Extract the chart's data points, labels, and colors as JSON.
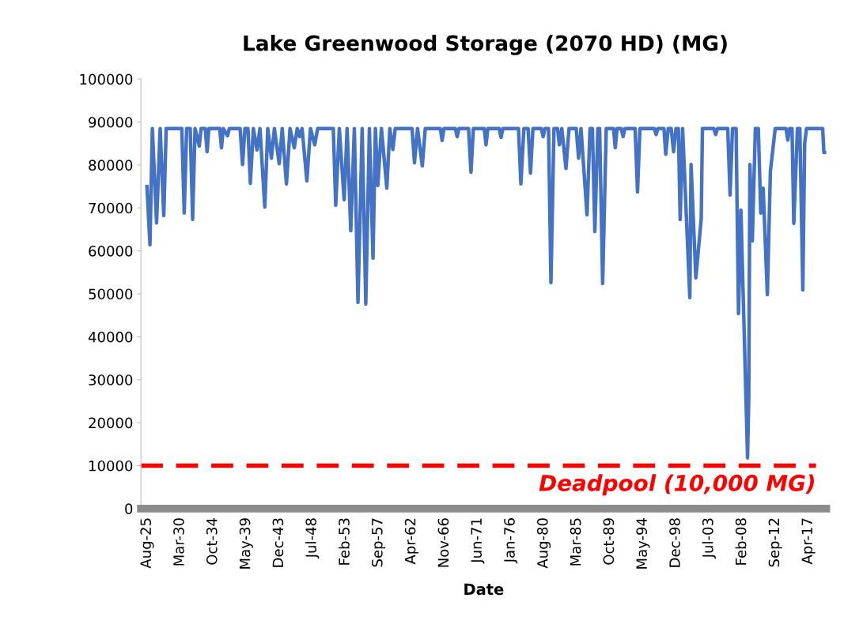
{
  "chart_data": {
    "type": "line",
    "title": "Lake Greenwood Storage (2070 HD) (MG)",
    "xlabel": "Date",
    "x": [
      "1925-08",
      "1926-01",
      "1926-05",
      "1926-12",
      "1927-06",
      "1927-12",
      "1928-04",
      "1930-06",
      "1930-10",
      "1931-02",
      "1931-08",
      "1931-12",
      "1932-04",
      "1932-11",
      "1933-02",
      "1933-09",
      "1933-12",
      "1934-03",
      "1935-09",
      "1935-12",
      "1936-03",
      "1936-10",
      "1937-01",
      "1938-07",
      "1938-11",
      "1939-03",
      "1939-08",
      "1939-12",
      "1940-05",
      "1940-11",
      "1941-04",
      "1941-12",
      "1942-05",
      "1942-11",
      "1943-04",
      "1943-12",
      "1944-05",
      "1944-12",
      "1945-06",
      "1946-01",
      "1946-06",
      "1946-10",
      "1947-02",
      "1947-10",
      "1948-04",
      "1948-11",
      "1949-04",
      "1951-06",
      "1951-10",
      "1952-04",
      "1952-12",
      "1953-05",
      "1953-11",
      "1954-05",
      "1954-11",
      "1955-06",
      "1955-12",
      "1956-06",
      "1956-12",
      "1957-04",
      "1957-08",
      "1958-02",
      "1958-11",
      "1959-04",
      "1959-09",
      "1960-01",
      "1962-05",
      "1962-09",
      "1963-02",
      "1963-10",
      "1964-03",
      "1966-04",
      "1966-07",
      "1966-10",
      "1968-05",
      "1968-08",
      "1968-11",
      "1970-03",
      "1970-07",
      "1970-11",
      "1972-05",
      "1972-08",
      "1972-11",
      "1974-06",
      "1974-09",
      "1974-12",
      "1977-02",
      "1977-06",
      "1977-11",
      "1978-06",
      "1978-10",
      "1979-02",
      "1980-04",
      "1980-07",
      "1980-10",
      "1981-04",
      "1981-08",
      "1982-01",
      "1982-07",
      "1982-10",
      "1983-02",
      "1983-09",
      "1984-02",
      "1985-02",
      "1985-06",
      "1985-10",
      "1986-08",
      "1987-01",
      "1987-05",
      "1987-09",
      "1988-02",
      "1988-05",
      "1988-10",
      "1989-04",
      "1990-04",
      "1990-07",
      "1990-10",
      "1991-05",
      "1991-08",
      "1991-11",
      "1993-04",
      "1993-08",
      "1993-12",
      "1995-12",
      "1996-03",
      "1996-06",
      "1997-04",
      "1997-07",
      "1997-11",
      "1998-04",
      "1998-08",
      "1998-12",
      "1999-04",
      "1999-07",
      "1999-11",
      "2000-11",
      "2001-01",
      "2001-09",
      "2002-06",
      "2002-08",
      "2004-03",
      "2004-06",
      "2004-09",
      "2006-02",
      "2006-06",
      "2006-10",
      "2007-04",
      "2007-08",
      "2007-12",
      "2008-11",
      "2009-01",
      "2009-03",
      "2009-07",
      "2009-12",
      "2010-05",
      "2010-09",
      "2011-01",
      "2011-08",
      "2012-01",
      "2012-09",
      "2014-03",
      "2014-06",
      "2014-09",
      "2015-01",
      "2015-04",
      "2015-10",
      "2016-02",
      "2016-07",
      "2016-10",
      "2017-01",
      "2019-04",
      "2019-06",
      "2019-10"
    ],
    "series": [
      {
        "color": "#4472c4",
        "values": [
          75000,
          61400,
          88500,
          66500,
          88500,
          68200,
          88500,
          88500,
          68800,
          88500,
          88500,
          67300,
          88500,
          84400,
          88500,
          88500,
          83100,
          88500,
          88500,
          84000,
          88500,
          86800,
          88500,
          88500,
          80100,
          88500,
          88500,
          75700,
          88500,
          83500,
          88500,
          70200,
          88500,
          81600,
          88500,
          80300,
          88500,
          75600,
          88500,
          84000,
          88500,
          86600,
          88500,
          76300,
          88500,
          84700,
          88500,
          88500,
          70600,
          88500,
          71900,
          88500,
          64700,
          88500,
          48000,
          88500,
          47600,
          88500,
          58300,
          88500,
          75200,
          88500,
          74600,
          88500,
          83600,
          88500,
          88500,
          80500,
          88500,
          79800,
          88500,
          88500,
          85700,
          88500,
          88500,
          86600,
          88500,
          88500,
          78300,
          88500,
          88500,
          84700,
          88500,
          88500,
          86400,
          88500,
          88500,
          75600,
          88500,
          88500,
          78100,
          88500,
          88500,
          86600,
          88500,
          88500,
          52600,
          88500,
          88500,
          84700,
          88500,
          79200,
          88500,
          88500,
          81600,
          88500,
          68400,
          88500,
          88500,
          64500,
          88500,
          88500,
          52400,
          88500,
          88500,
          84000,
          88500,
          88500,
          86600,
          88500,
          88500,
          73700,
          88500,
          88500,
          87100,
          88500,
          88500,
          82500,
          88500,
          88500,
          83100,
          88500,
          88500,
          67300,
          88500,
          49100,
          80100,
          53700,
          67500,
          88500,
          88500,
          87100,
          88500,
          88500,
          73000,
          88500,
          88500,
          45400,
          69500,
          11800,
          25900,
          80100,
          62300,
          88500,
          88500,
          68800,
          74600,
          49800,
          78500,
          88500,
          88500,
          85800,
          88500,
          88500,
          66400,
          88500,
          88500,
          50900,
          85000,
          88500,
          88500,
          82900,
          82900
        ]
      }
    ],
    "xlim": [
      "1924-10",
      "2019-10"
    ],
    "xticks": [
      {
        "value": "1925-08",
        "label": "Aug-25"
      },
      {
        "value": "1930-03",
        "label": "Mar-30"
      },
      {
        "value": "1934-10",
        "label": "Oct-34"
      },
      {
        "value": "1939-05",
        "label": "May-39"
      },
      {
        "value": "1943-12",
        "label": "Dec-43"
      },
      {
        "value": "1948-07",
        "label": "Jul-48"
      },
      {
        "value": "1953-02",
        "label": "Feb-53"
      },
      {
        "value": "1957-09",
        "label": "Sep-57"
      },
      {
        "value": "1962-04",
        "label": "Apr-62"
      },
      {
        "value": "1966-11",
        "label": "Nov-66"
      },
      {
        "value": "1971-06",
        "label": "Jun-71"
      },
      {
        "value": "1976-01",
        "label": "Jan-76"
      },
      {
        "value": "1980-08",
        "label": "Aug-80"
      },
      {
        "value": "1985-03",
        "label": "Mar-85"
      },
      {
        "value": "1989-10",
        "label": "Oct-89"
      },
      {
        "value": "1994-05",
        "label": "May-94"
      },
      {
        "value": "1998-12",
        "label": "Dec-98"
      },
      {
        "value": "2003-07",
        "label": "Jul-03"
      },
      {
        "value": "2008-02",
        "label": "Feb-08"
      },
      {
        "value": "2012-09",
        "label": "Sep-12"
      },
      {
        "value": "2017-04",
        "label": "Apr-17"
      }
    ],
    "ylim": [
      0,
      100000
    ],
    "yticks": [
      0,
      10000,
      20000,
      30000,
      40000,
      50000,
      60000,
      70000,
      80000,
      90000,
      100000
    ],
    "ref_lines": [
      {
        "axis": "y",
        "value": 10000,
        "label": "Deadpool (10,000 MG)",
        "color": "#ff0000",
        "line_style": "dashed"
      }
    ],
    "grid": false,
    "legend": false,
    "marker": "none",
    "line_style": "solid"
  }
}
